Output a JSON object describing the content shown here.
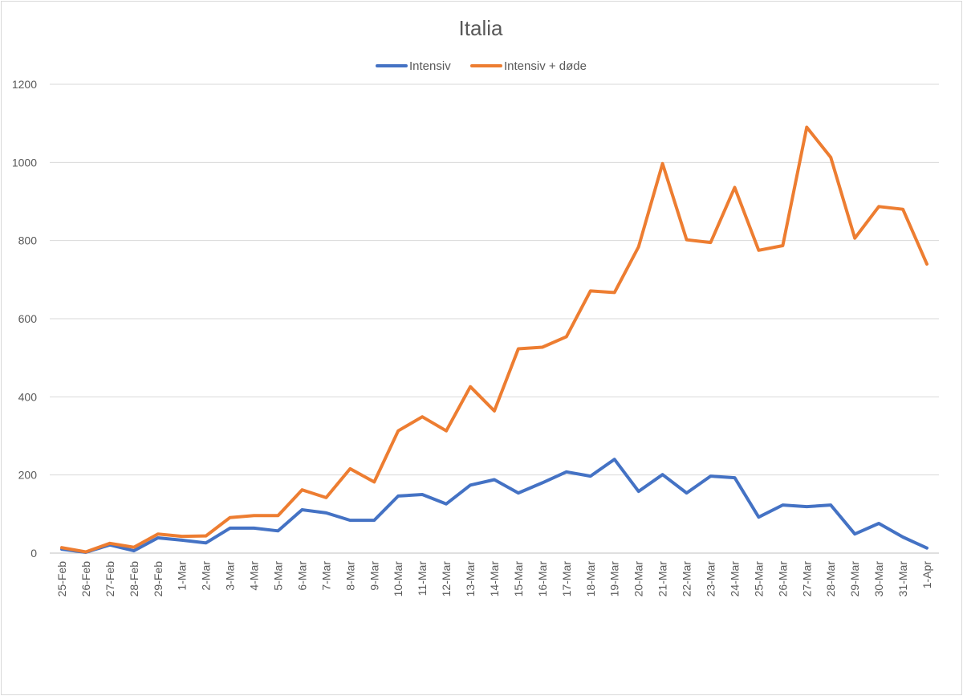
{
  "chart_data": {
    "type": "line",
    "title": "Italia",
    "legend_position": "top",
    "grid": true,
    "ylim": [
      0,
      1200
    ],
    "yticks": [
      0,
      200,
      400,
      600,
      800,
      1000,
      1200
    ],
    "categories": [
      "25-Feb",
      "26-Feb",
      "27-Feb",
      "28-Feb",
      "29-Feb",
      "1-Mar",
      "2-Mar",
      "3-Mar",
      "4-Mar",
      "5-Mar",
      "6-Mar",
      "7-Mar",
      "8-Mar",
      "9-Mar",
      "10-Mar",
      "11-Mar",
      "12-Mar",
      "13-Mar",
      "14-Mar",
      "15-Mar",
      "16-Mar",
      "17-Mar",
      "18-Mar",
      "19-Mar",
      "20-Mar",
      "21-Mar",
      "22-Mar",
      "23-Mar",
      "24-Mar",
      "25-Mar",
      "26-Mar",
      "27-Mar",
      "28-Mar",
      "29-Mar",
      "30-Mar",
      "31-Mar",
      "1-Apr"
    ],
    "series": [
      {
        "name": "Intensiv",
        "color": "#4472c4",
        "values": [
          10,
          2,
          21,
          6,
          39,
          33,
          26,
          64,
          64,
          57,
          111,
          103,
          84,
          84,
          146,
          150,
          126,
          174,
          188,
          154,
          180,
          208,
          197,
          240,
          158,
          201,
          154,
          197,
          193,
          92,
          123,
          119,
          123,
          49,
          76,
          41,
          13
        ]
      },
      {
        "name": "Intensiv + døde",
        "color": "#ed7d31",
        "values": [
          14,
          3,
          25,
          15,
          49,
          43,
          44,
          91,
          96,
          96,
          162,
          142,
          216,
          182,
          313,
          349,
          313,
          426,
          364,
          523,
          527,
          554,
          671,
          667,
          784,
          997,
          802,
          795,
          936,
          775,
          787,
          1090,
          1013,
          806,
          887,
          880,
          740
        ]
      }
    ]
  }
}
